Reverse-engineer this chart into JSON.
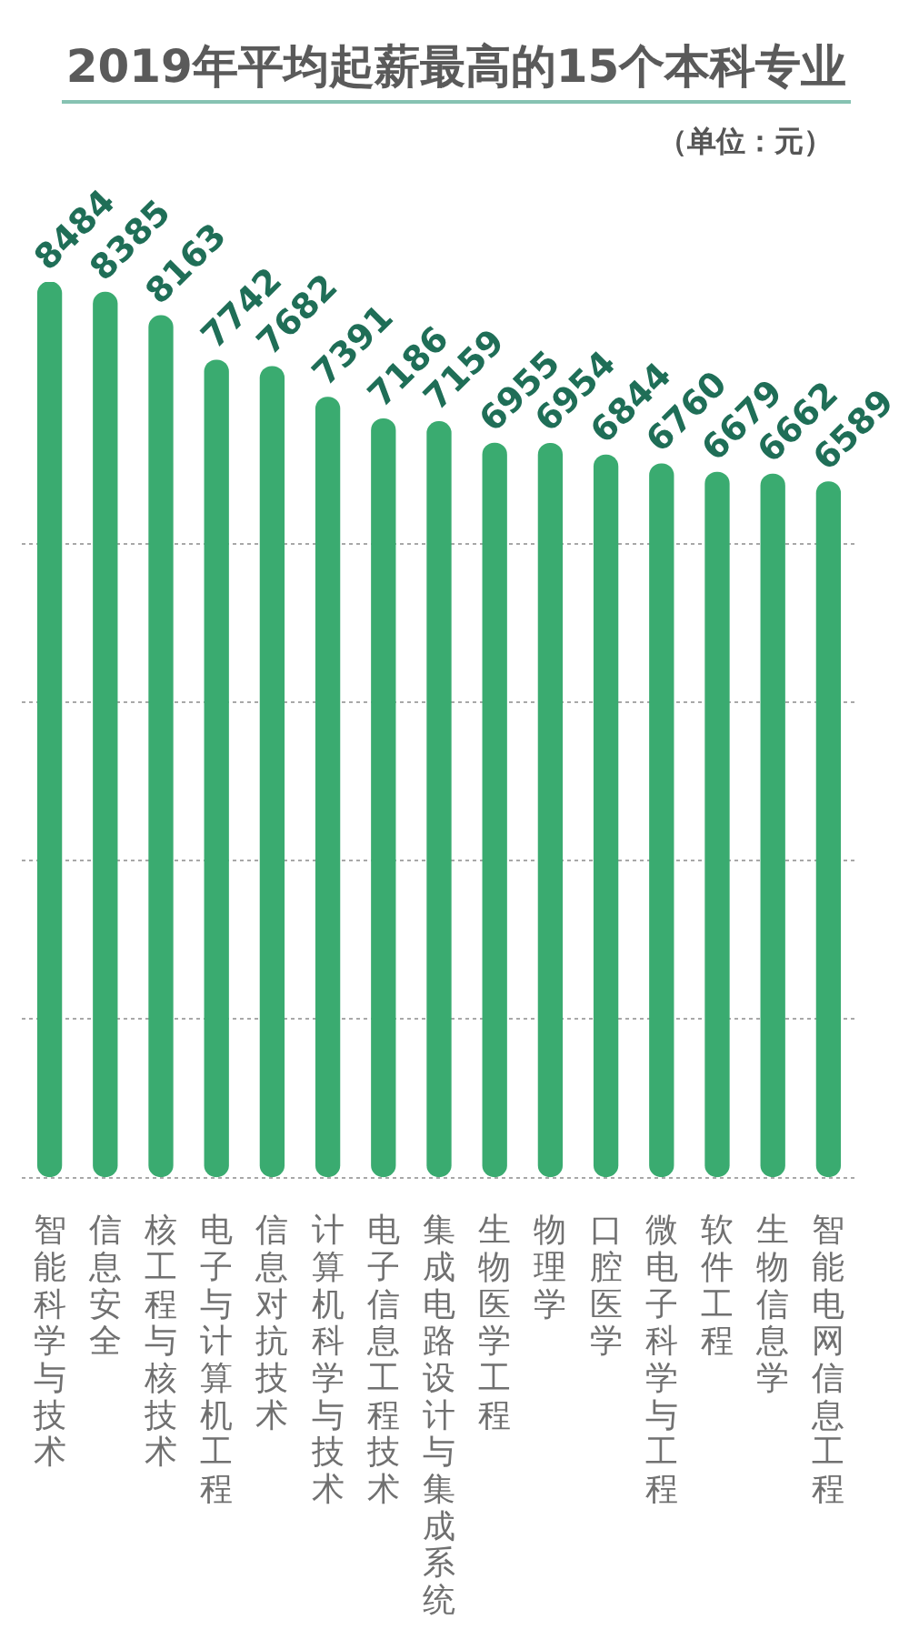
{
  "chart_data": {
    "type": "bar",
    "title": "2019年平均起薪最高的15个本科专业",
    "subtitle": "（单位：元）",
    "categories": [
      "智能科学与技术",
      "信息安全",
      "核工程与核技术",
      "电子与计算机工程",
      "信息对抗技术",
      "计算机科学与技术",
      "电子信息工程技术",
      "集成电路设计与集成系统",
      "生物医学工程",
      "物理学",
      "口腔医学",
      "微电子科学与工程",
      "软件工程",
      "生物信息学",
      "智能电网信息工程"
    ],
    "values": [
      8484,
      8385,
      8163,
      7742,
      7682,
      7391,
      7186,
      7159,
      6955,
      6954,
      6844,
      6760,
      6679,
      6662,
      6589
    ],
    "color": "#3aab70",
    "data_labels": true,
    "grid": "y",
    "tick_labels": "x",
    "yticks": [
      {
        "value": 0,
        "label": null
      },
      {
        "value": 1500,
        "label": null
      },
      {
        "value": 3000,
        "label": null
      },
      {
        "value": 4500,
        "label": null
      },
      {
        "value": 6000,
        "label": null
      }
    ]
  }
}
